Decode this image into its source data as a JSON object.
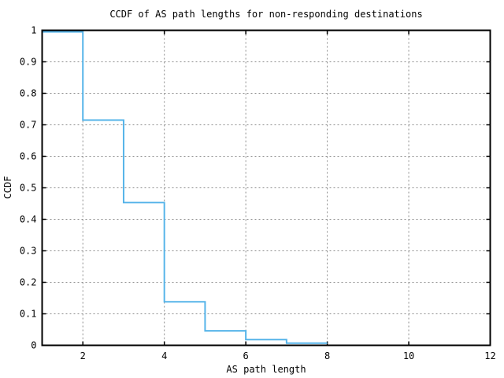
{
  "chart_data": {
    "type": "line",
    "subtype": "step",
    "title": "CCDF of AS path lengths for non-responding destinations",
    "xlabel": "AS path length",
    "ylabel": "CCDF",
    "xlim": [
      1,
      12
    ],
    "ylim": [
      0,
      1
    ],
    "xticks": [
      2,
      4,
      6,
      8,
      10,
      12
    ],
    "xtick_labels": [
      "2",
      "4",
      "6",
      "8",
      "10",
      "12"
    ],
    "yticks": [
      0,
      0.1,
      0.2,
      0.3,
      0.4,
      0.5,
      0.6,
      0.7,
      0.8,
      0.9,
      1
    ],
    "ytick_labels": [
      "0",
      "0.1",
      "0.2",
      "0.3",
      "0.4",
      "0.5",
      "0.6",
      "0.7",
      "0.8",
      "0.9",
      "1"
    ],
    "grid": true,
    "grid_style": "dashed",
    "legend": false,
    "line_color": "#56b4e9",
    "grid_color": "#8c8c8c",
    "axis_color": "#000000",
    "background_color": "#ffffff",
    "steps": [
      {
        "x_start": 1,
        "x_end": 2,
        "ccdf": 0.995
      },
      {
        "x_start": 2,
        "x_end": 3,
        "ccdf": 0.715
      },
      {
        "x_start": 3,
        "x_end": 4,
        "ccdf": 0.453
      },
      {
        "x_start": 4,
        "x_end": 5,
        "ccdf": 0.138
      },
      {
        "x_start": 5,
        "x_end": 6,
        "ccdf": 0.046
      },
      {
        "x_start": 6,
        "x_end": 7,
        "ccdf": 0.018
      },
      {
        "x_start": 7,
        "x_end": 8,
        "ccdf": 0.007
      }
    ]
  }
}
